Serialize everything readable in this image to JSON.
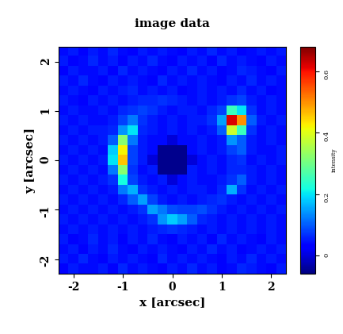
{
  "chart_data": {
    "type": "heatmap",
    "title": "image data",
    "x_label": "x [arcsec]",
    "y_label": "y [arcsec]",
    "xlim": [
      -2.3,
      2.3
    ],
    "ylim": [
      -2.3,
      2.3
    ],
    "xticks": [
      -2,
      -1,
      0,
      1,
      2
    ],
    "yticks": [
      -2,
      -1,
      0,
      1,
      2
    ],
    "cells": [
      [
        0.04,
        0.05,
        0.03,
        0.05,
        0.04,
        0.06,
        0.04,
        0.03,
        0.05,
        0.04,
        0.05,
        0.04,
        0.03,
        0.05,
        0.04,
        0.06,
        0.04,
        0.05,
        0.03,
        0.04,
        0.05,
        0.04,
        0.05
      ],
      [
        0.05,
        0.03,
        0.04,
        0.06,
        0.04,
        0.05,
        0.03,
        0.05,
        0.04,
        0.06,
        0.04,
        0.03,
        0.05,
        0.04,
        0.05,
        0.03,
        0.06,
        0.04,
        0.05,
        0.04,
        0.03,
        0.05,
        0.04
      ],
      [
        0.03,
        0.05,
        0.04,
        0.04,
        0.05,
        0.03,
        0.06,
        0.04,
        0.05,
        0.04,
        0.03,
        0.05,
        0.04,
        0.06,
        0.04,
        0.05,
        0.03,
        0.04,
        0.06,
        0.05,
        0.04,
        0.03,
        0.05
      ],
      [
        0.05,
        0.04,
        0.06,
        0.04,
        0.03,
        0.05,
        0.04,
        0.05,
        0.04,
        0.03,
        0.06,
        0.04,
        0.05,
        0.04,
        0.05,
        0.04,
        0.03,
        0.05,
        0.04,
        0.06,
        0.04,
        0.05,
        0.04
      ],
      [
        0.04,
        0.05,
        0.04,
        0.03,
        0.05,
        0.04,
        0.05,
        0.06,
        0.04,
        0.05,
        0.04,
        0.05,
        0.03,
        0.04,
        0.05,
        0.04,
        0.05,
        0.04,
        0.06,
        0.04,
        0.05,
        0.03,
        0.04
      ],
      [
        0.05,
        0.04,
        0.03,
        0.05,
        0.04,
        0.05,
        0.04,
        0.05,
        0.06,
        0.06,
        0.07,
        0.06,
        0.05,
        0.04,
        0.05,
        0.04,
        0.05,
        0.07,
        0.08,
        0.05,
        0.04,
        0.05,
        0.04
      ],
      [
        0.04,
        0.05,
        0.04,
        0.04,
        0.05,
        0.04,
        0.06,
        0.07,
        0.08,
        0.07,
        0.05,
        0.04,
        0.05,
        0.05,
        0.04,
        0.06,
        0.08,
        0.25,
        0.2,
        0.07,
        0.04,
        0.05,
        0.04
      ],
      [
        0.05,
        0.04,
        0.05,
        0.04,
        0.04,
        0.05,
        0.08,
        0.12,
        0.07,
        0.05,
        0.04,
        0.05,
        0.04,
        0.05,
        0.05,
        0.07,
        0.15,
        0.62,
        0.5,
        0.1,
        0.05,
        0.04,
        0.05
      ],
      [
        0.04,
        0.05,
        0.04,
        0.05,
        0.05,
        0.06,
        0.14,
        0.2,
        0.06,
        0.05,
        0.04,
        0.05,
        0.04,
        0.05,
        0.04,
        0.05,
        0.1,
        0.38,
        0.25,
        0.07,
        0.04,
        0.05,
        0.04
      ],
      [
        0.05,
        0.04,
        0.05,
        0.04,
        0.05,
        0.1,
        0.32,
        0.12,
        0.05,
        0.04,
        0.04,
        0.0,
        0.04,
        0.04,
        0.05,
        0.04,
        0.05,
        0.14,
        0.1,
        0.05,
        0.04,
        0.05,
        0.04
      ],
      [
        0.04,
        0.05,
        0.04,
        0.05,
        0.04,
        0.18,
        0.42,
        0.08,
        0.05,
        0.04,
        -0.05,
        -0.05,
        -0.05,
        0.04,
        0.05,
        0.04,
        0.05,
        0.08,
        0.1,
        0.05,
        0.04,
        0.04,
        0.05
      ],
      [
        0.05,
        0.04,
        0.05,
        0.04,
        0.05,
        0.2,
        0.46,
        0.08,
        0.05,
        0.0,
        -0.05,
        -0.05,
        -0.05,
        0.0,
        0.04,
        0.05,
        0.04,
        0.06,
        0.07,
        0.04,
        0.05,
        0.04,
        0.05
      ],
      [
        0.04,
        0.05,
        0.04,
        0.05,
        0.04,
        0.12,
        0.32,
        0.07,
        0.04,
        0.05,
        -0.05,
        -0.05,
        -0.05,
        0.05,
        0.04,
        0.05,
        0.04,
        0.06,
        0.06,
        0.05,
        0.04,
        0.05,
        0.04
      ],
      [
        0.05,
        0.04,
        0.05,
        0.04,
        0.05,
        0.07,
        0.22,
        0.08,
        0.05,
        0.04,
        0.05,
        0.0,
        0.04,
        0.05,
        0.04,
        0.04,
        0.05,
        0.07,
        0.1,
        0.05,
        0.04,
        0.05,
        0.04
      ],
      [
        0.04,
        0.05,
        0.04,
        0.05,
        0.04,
        0.05,
        0.12,
        0.16,
        0.07,
        0.05,
        0.04,
        0.05,
        0.04,
        0.05,
        0.05,
        0.04,
        0.06,
        0.16,
        0.07,
        0.04,
        0.05,
        0.04,
        0.05
      ],
      [
        0.05,
        0.04,
        0.05,
        0.04,
        0.05,
        0.04,
        0.06,
        0.1,
        0.15,
        0.08,
        0.05,
        0.04,
        0.05,
        0.04,
        0.05,
        0.06,
        0.07,
        0.05,
        0.04,
        0.05,
        0.04,
        0.05,
        0.04
      ],
      [
        0.04,
        0.05,
        0.04,
        0.05,
        0.04,
        0.05,
        0.04,
        0.05,
        0.07,
        0.15,
        0.12,
        0.09,
        0.08,
        0.08,
        0.09,
        0.07,
        0.05,
        0.04,
        0.05,
        0.04,
        0.05,
        0.04,
        0.05
      ],
      [
        0.05,
        0.04,
        0.05,
        0.04,
        0.05,
        0.04,
        0.05,
        0.04,
        0.05,
        0.07,
        0.14,
        0.18,
        0.15,
        0.1,
        0.06,
        0.05,
        0.04,
        0.05,
        0.04,
        0.05,
        0.04,
        0.05,
        0.04
      ],
      [
        0.04,
        0.05,
        0.04,
        0.05,
        0.04,
        0.05,
        0.04,
        0.05,
        0.04,
        0.05,
        0.06,
        0.07,
        0.06,
        0.05,
        0.04,
        0.05,
        0.04,
        0.05,
        0.04,
        0.05,
        0.04,
        0.05,
        0.04
      ],
      [
        0.05,
        0.03,
        0.04,
        0.06,
        0.04,
        0.05,
        0.03,
        0.05,
        0.04,
        0.06,
        0.04,
        0.03,
        0.05,
        0.04,
        0.05,
        0.03,
        0.06,
        0.04,
        0.05,
        0.04,
        0.03,
        0.05,
        0.04
      ],
      [
        0.04,
        0.05,
        0.03,
        0.05,
        0.04,
        0.06,
        0.04,
        0.03,
        0.05,
        0.04,
        0.05,
        0.04,
        0.03,
        0.05,
        0.04,
        0.06,
        0.04,
        0.05,
        0.03,
        0.04,
        0.05,
        0.04,
        0.05
      ],
      [
        0.05,
        0.04,
        0.06,
        0.04,
        0.03,
        0.05,
        0.04,
        0.05,
        0.04,
        0.03,
        0.06,
        0.04,
        0.05,
        0.04,
        0.05,
        0.04,
        0.03,
        0.05,
        0.04,
        0.06,
        0.04,
        0.05,
        0.04
      ],
      [
        0.03,
        0.05,
        0.04,
        0.04,
        0.05,
        0.03,
        0.06,
        0.04,
        0.05,
        0.04,
        0.03,
        0.05,
        0.04,
        0.06,
        0.04,
        0.05,
        0.03,
        0.04,
        0.06,
        0.05,
        0.04,
        0.03,
        0.05
      ]
    ],
    "colorbar": {
      "label": "intensity",
      "range": [
        -0.06,
        0.68
      ],
      "ticks": [
        0,
        0.2,
        0.4,
        0.6
      ]
    }
  }
}
